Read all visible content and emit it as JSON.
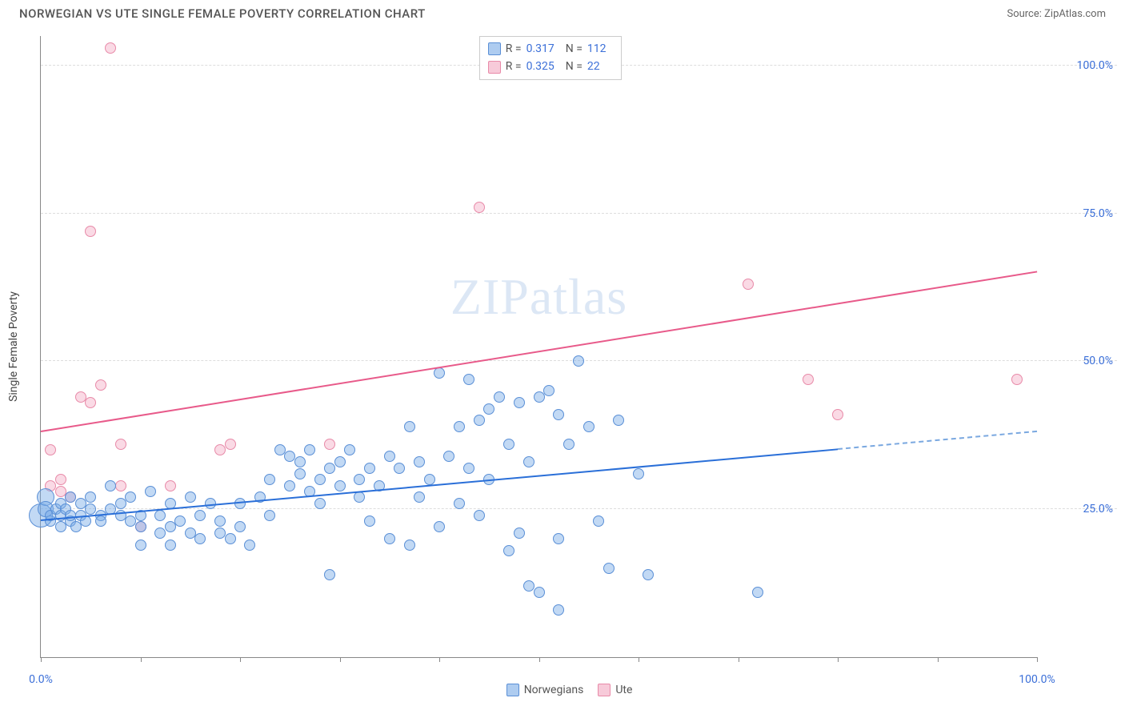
{
  "header": {
    "title": "NORWEGIAN VS UTE SINGLE FEMALE POVERTY CORRELATION CHART",
    "source_prefix": "Source: ",
    "source_name": "ZipAtlas.com"
  },
  "watermark": "ZIPatlas",
  "chart": {
    "type": "scatter",
    "y_label": "Single Female Poverty",
    "background_color": "#ffffff",
    "grid_color": "#dddddd",
    "axis_color": "#888888",
    "xlim": [
      0,
      100
    ],
    "ylim": [
      0,
      105
    ],
    "x_ticks": [
      0,
      10,
      20,
      30,
      40,
      50,
      60,
      70,
      80,
      90,
      100
    ],
    "x_tick_labels": {
      "0": "0.0%",
      "100": "100.0%"
    },
    "y_ticks": [
      25,
      50,
      75,
      100
    ],
    "y_tick_labels": {
      "25": "25.0%",
      "50": "50.0%",
      "75": "75.0%",
      "100": "100.0%"
    },
    "tick_label_color": "#3b6fd8",
    "tick_label_fontsize": 14,
    "axis_label_fontsize": 14,
    "axis_label_color": "#444444"
  },
  "legend_top": {
    "rows": [
      {
        "color": "blue",
        "r_label": "R =",
        "r_value": "0.317",
        "n_label": "N =",
        "n_value": "112"
      },
      {
        "color": "pink",
        "r_label": "R =",
        "r_value": "0.325",
        "n_label": "N =",
        "n_value": "22"
      }
    ]
  },
  "legend_bottom": {
    "items": [
      {
        "color": "blue",
        "label": "Norwegians"
      },
      {
        "color": "pink",
        "label": "Ute"
      }
    ]
  },
  "series": {
    "blue": {
      "marker_fill": "rgba(120,170,230,0.45)",
      "marker_stroke": "#5a8fd6",
      "default_size": 14,
      "trend": {
        "x0": 0,
        "y0": 23,
        "x1": 80,
        "y1": 35,
        "dash_to_x": 100,
        "dash_to_y": 38,
        "color": "#2a6fd8",
        "width": 2
      },
      "points": [
        {
          "x": 0,
          "y": 24,
          "s": 30
        },
        {
          "x": 0.5,
          "y": 27,
          "s": 22
        },
        {
          "x": 0.5,
          "y": 25,
          "s": 20
        },
        {
          "x": 1,
          "y": 23
        },
        {
          "x": 1,
          "y": 24
        },
        {
          "x": 1.5,
          "y": 25
        },
        {
          "x": 2,
          "y": 26
        },
        {
          "x": 2,
          "y": 24
        },
        {
          "x": 2,
          "y": 22
        },
        {
          "x": 2.5,
          "y": 25
        },
        {
          "x": 3,
          "y": 23
        },
        {
          "x": 3,
          "y": 27
        },
        {
          "x": 3,
          "y": 24
        },
        {
          "x": 3.5,
          "y": 22
        },
        {
          "x": 4,
          "y": 26
        },
        {
          "x": 4,
          "y": 24
        },
        {
          "x": 4.5,
          "y": 23
        },
        {
          "x": 5,
          "y": 25
        },
        {
          "x": 5,
          "y": 27
        },
        {
          "x": 6,
          "y": 24
        },
        {
          "x": 6,
          "y": 23
        },
        {
          "x": 7,
          "y": 29
        },
        {
          "x": 7,
          "y": 25
        },
        {
          "x": 8,
          "y": 24
        },
        {
          "x": 8,
          "y": 26
        },
        {
          "x": 9,
          "y": 23
        },
        {
          "x": 9,
          "y": 27
        },
        {
          "x": 10,
          "y": 24
        },
        {
          "x": 10,
          "y": 22
        },
        {
          "x": 10,
          "y": 19
        },
        {
          "x": 11,
          "y": 28
        },
        {
          "x": 12,
          "y": 21
        },
        {
          "x": 12,
          "y": 24
        },
        {
          "x": 13,
          "y": 26
        },
        {
          "x": 13,
          "y": 22
        },
        {
          "x": 13,
          "y": 19
        },
        {
          "x": 14,
          "y": 23
        },
        {
          "x": 15,
          "y": 21
        },
        {
          "x": 15,
          "y": 27
        },
        {
          "x": 16,
          "y": 24
        },
        {
          "x": 16,
          "y": 20
        },
        {
          "x": 17,
          "y": 26
        },
        {
          "x": 18,
          "y": 21
        },
        {
          "x": 18,
          "y": 23
        },
        {
          "x": 19,
          "y": 20
        },
        {
          "x": 20,
          "y": 26
        },
        {
          "x": 20,
          "y": 22
        },
        {
          "x": 21,
          "y": 19
        },
        {
          "x": 22,
          "y": 27
        },
        {
          "x": 23,
          "y": 30
        },
        {
          "x": 23,
          "y": 24
        },
        {
          "x": 24,
          "y": 35
        },
        {
          "x": 25,
          "y": 34
        },
        {
          "x": 25,
          "y": 29
        },
        {
          "x": 26,
          "y": 31
        },
        {
          "x": 26,
          "y": 33
        },
        {
          "x": 27,
          "y": 28
        },
        {
          "x": 27,
          "y": 35
        },
        {
          "x": 28,
          "y": 30
        },
        {
          "x": 28,
          "y": 26
        },
        {
          "x": 29,
          "y": 14
        },
        {
          "x": 29,
          "y": 32
        },
        {
          "x": 30,
          "y": 33
        },
        {
          "x": 30,
          "y": 29
        },
        {
          "x": 31,
          "y": 35
        },
        {
          "x": 32,
          "y": 30
        },
        {
          "x": 32,
          "y": 27
        },
        {
          "x": 33,
          "y": 23
        },
        {
          "x": 33,
          "y": 32
        },
        {
          "x": 34,
          "y": 29
        },
        {
          "x": 35,
          "y": 34
        },
        {
          "x": 35,
          "y": 20
        },
        {
          "x": 36,
          "y": 32
        },
        {
          "x": 37,
          "y": 19
        },
        {
          "x": 37,
          "y": 39
        },
        {
          "x": 38,
          "y": 33
        },
        {
          "x": 38,
          "y": 27
        },
        {
          "x": 39,
          "y": 30
        },
        {
          "x": 40,
          "y": 48
        },
        {
          "x": 40,
          "y": 22
        },
        {
          "x": 41,
          "y": 34
        },
        {
          "x": 42,
          "y": 39
        },
        {
          "x": 42,
          "y": 26
        },
        {
          "x": 43,
          "y": 32
        },
        {
          "x": 44,
          "y": 40
        },
        {
          "x": 44,
          "y": 24
        },
        {
          "x": 45,
          "y": 42
        },
        {
          "x": 45,
          "y": 30
        },
        {
          "x": 46,
          "y": 44
        },
        {
          "x": 47,
          "y": 18
        },
        {
          "x": 47,
          "y": 36
        },
        {
          "x": 48,
          "y": 21
        },
        {
          "x": 48,
          "y": 43
        },
        {
          "x": 49,
          "y": 12
        },
        {
          "x": 49,
          "y": 33
        },
        {
          "x": 50,
          "y": 44
        },
        {
          "x": 50,
          "y": 11
        },
        {
          "x": 51,
          "y": 45
        },
        {
          "x": 52,
          "y": 41
        },
        {
          "x": 52,
          "y": 20
        },
        {
          "x": 53,
          "y": 36
        },
        {
          "x": 54,
          "y": 50
        },
        {
          "x": 55,
          "y": 39
        },
        {
          "x": 56,
          "y": 23
        },
        {
          "x": 57,
          "y": 15
        },
        {
          "x": 58,
          "y": 40
        },
        {
          "x": 60,
          "y": 31
        },
        {
          "x": 61,
          "y": 14
        },
        {
          "x": 52,
          "y": 8
        },
        {
          "x": 72,
          "y": 11
        },
        {
          "x": 43,
          "y": 47
        }
      ]
    },
    "pink": {
      "marker_fill": "rgba(240,150,180,0.35)",
      "marker_stroke": "#e88aa8",
      "default_size": 14,
      "trend": {
        "x0": 0,
        "y0": 38,
        "x1": 100,
        "y1": 65,
        "color": "#e85a8a",
        "width": 2
      },
      "points": [
        {
          "x": 7,
          "y": 103
        },
        {
          "x": 5,
          "y": 72
        },
        {
          "x": 1,
          "y": 35
        },
        {
          "x": 1,
          "y": 29
        },
        {
          "x": 2,
          "y": 30
        },
        {
          "x": 2,
          "y": 28
        },
        {
          "x": 3,
          "y": 27
        },
        {
          "x": 4,
          "y": 44
        },
        {
          "x": 5,
          "y": 43
        },
        {
          "x": 6,
          "y": 46
        },
        {
          "x": 8,
          "y": 36
        },
        {
          "x": 8,
          "y": 29
        },
        {
          "x": 10,
          "y": 22
        },
        {
          "x": 13,
          "y": 29
        },
        {
          "x": 18,
          "y": 35
        },
        {
          "x": 19,
          "y": 36
        },
        {
          "x": 29,
          "y": 36
        },
        {
          "x": 44,
          "y": 76
        },
        {
          "x": 71,
          "y": 63
        },
        {
          "x": 77,
          "y": 47
        },
        {
          "x": 80,
          "y": 41
        },
        {
          "x": 98,
          "y": 47
        }
      ]
    }
  }
}
